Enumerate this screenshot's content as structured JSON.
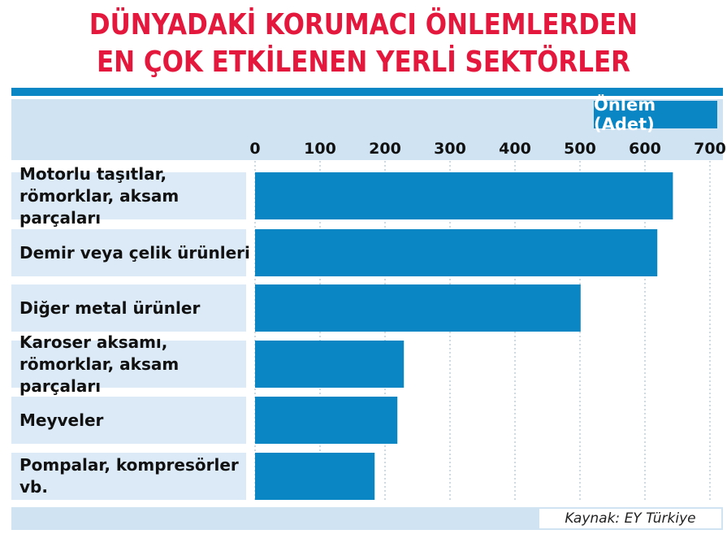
{
  "title_line1": "DÜNYADAKİ KORUMACI ÖNLEMLERDEN",
  "title_line2": "EN ÇOK ETKİLENEN YERLİ SEKTÖRLER",
  "unit_label": "Önlem (Adet)",
  "source": "Kaynak: EY Türkiye",
  "colors": {
    "bar": "#0a86c4",
    "title": "#e4173c",
    "band": "#cfe3f3"
  },
  "chart_data": {
    "type": "bar",
    "orientation": "horizontal",
    "title": "DÜNYADAKİ KORUMACI ÖNLEMLERDEN EN ÇOK ETKİLENEN YERLİ SEKTÖRLER",
    "xlabel": "Önlem (Adet)",
    "ylabel": "",
    "xlim": [
      0,
      700
    ],
    "xticks": [
      "0",
      "100",
      "200",
      "300",
      "400",
      "500",
      "600",
      "700"
    ],
    "grid": true,
    "categories": [
      "Motorlu taşıtlar, römorklar, aksam parçaları",
      "Demir veya çelik ürünleri",
      "Diğer metal ürünler",
      "Karoser aksamı, römorklar, aksam parçaları",
      "Meyveler",
      "Pompalar, kompresörler vb."
    ],
    "values": [
      643,
      619,
      501,
      229,
      219,
      184
    ]
  }
}
